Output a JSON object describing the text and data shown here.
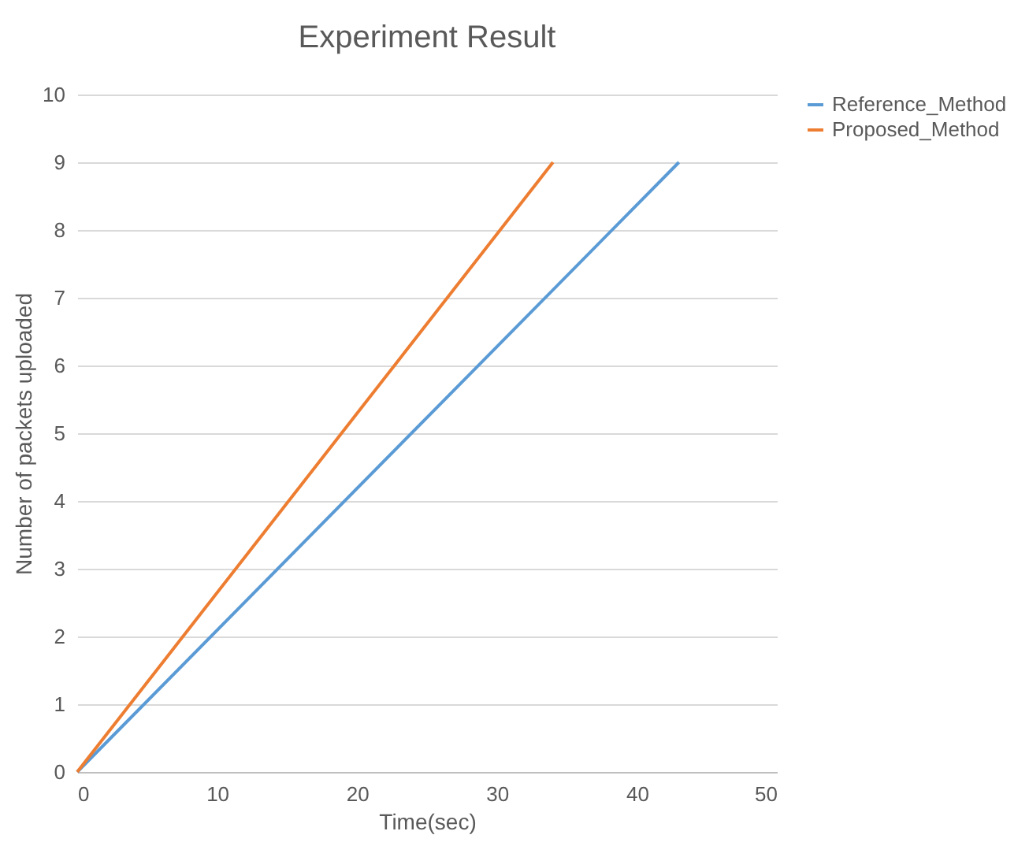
{
  "chart_data": {
    "type": "line",
    "title": "Experiment Result",
    "xlabel": "Time(sec)",
    "ylabel": "Number of packets uploaded",
    "series": [
      {
        "name": "Reference_Method",
        "color": "#5b9bd5",
        "x": [
          0,
          43
        ],
        "values": [
          0,
          9
        ]
      },
      {
        "name": "Proposed_Method",
        "color": "#ed7d31",
        "x": [
          0,
          34
        ],
        "values": [
          0,
          9
        ]
      }
    ],
    "xlim": [
      0,
      50
    ],
    "xticks": [
      0,
      10,
      20,
      30,
      40,
      50
    ],
    "ylim": [
      0,
      10
    ],
    "yticks": [
      0,
      1,
      2,
      3,
      4,
      5,
      6,
      7,
      8,
      9,
      10
    ],
    "grid": "y",
    "legend": "right",
    "marker": "none",
    "line_style": "solid"
  }
}
